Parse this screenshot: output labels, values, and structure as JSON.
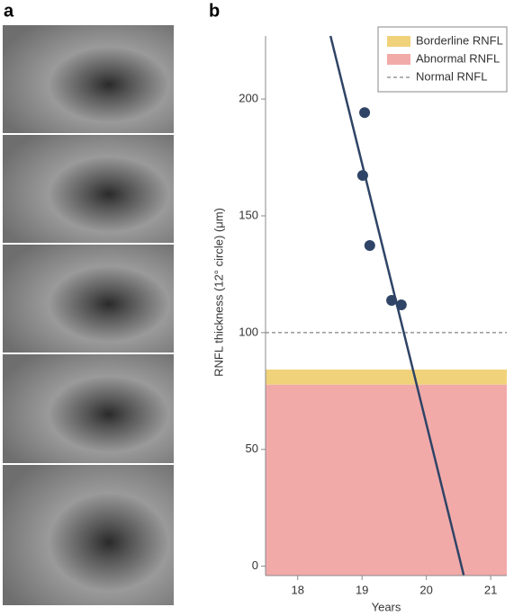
{
  "panel_labels": [
    "a",
    "b"
  ],
  "chart_data": {
    "type": "scatter",
    "xlabel": "Years",
    "ylabel": "RNFL thickness (12° circle) (μm)",
    "xlim": [
      17.5,
      21.25
    ],
    "xticks": [
      18,
      19,
      20,
      21
    ],
    "ylim": [
      -4,
      227
    ],
    "yticks": [
      0,
      50,
      100,
      150,
      200
    ],
    "grid": false,
    "legend": "upper right",
    "points": {
      "x": [
        19.04,
        19.01,
        19.12,
        19.46,
        19.61
      ],
      "y": [
        194.2,
        167.3,
        137.3,
        113.8,
        111.9
      ],
      "color": "#2f4466"
    },
    "trend_line": {
      "x": [
        18.51,
        20.58
      ],
      "y": [
        227,
        -3.8
      ],
      "color": "#2f4466"
    },
    "bands": [
      {
        "name": "Borderline RNFL",
        "color": "#f0d27a",
        "range": [
          77.7,
          84.2
        ]
      },
      {
        "name": "Abnormal RNFL",
        "color": "#f2aaa9",
        "range": [
          -4,
          77.7
        ]
      }
    ],
    "reference_lines": [
      {
        "name": "Normal RNFL",
        "value": 100,
        "color": "#666666",
        "style": "dashed"
      }
    ]
  }
}
